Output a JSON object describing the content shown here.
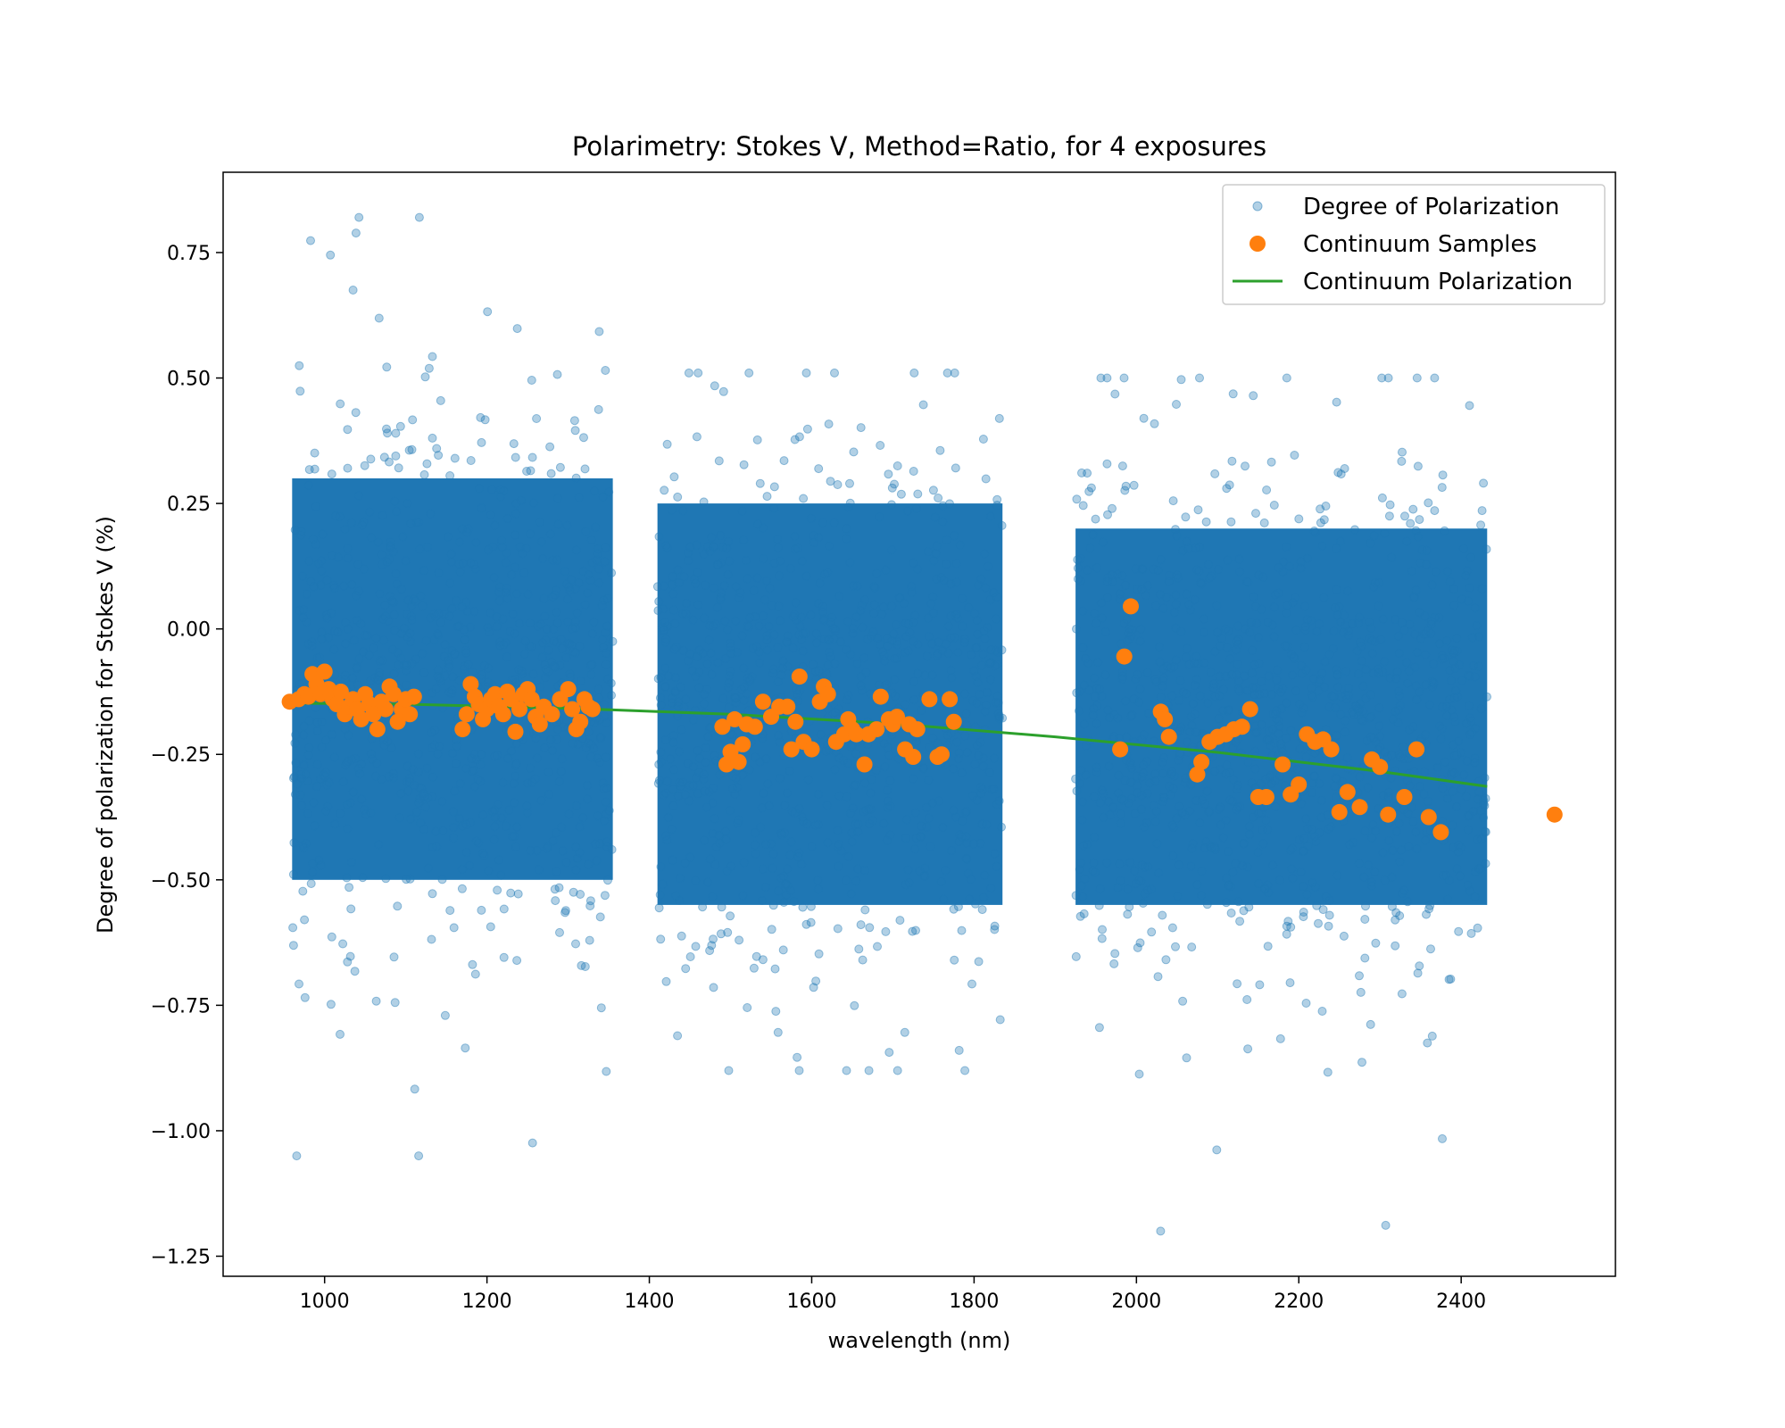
{
  "chart_data": {
    "type": "scatter",
    "title": "Polarimetry: Stokes V, Method=Ratio, for 4 exposures",
    "xlabel": "wavelength (nm)",
    "ylabel": "Degree of polarization for Stokes V (%)",
    "xlim": [
      875,
      2590
    ],
    "ylim": [
      -1.29,
      0.91
    ],
    "x_ticks": [
      1000,
      1200,
      1400,
      1600,
      1800,
      2000,
      2200,
      2400
    ],
    "y_ticks": [
      0.75,
      0.5,
      0.25,
      0.0,
      -0.25,
      -0.5,
      -0.75,
      -1.0,
      -1.25
    ],
    "y_tick_labels": [
      "0.75",
      "0.50",
      "0.25",
      "0.00",
      "−0.25",
      "−0.50",
      "−0.75",
      "−1.00",
      "−1.25"
    ],
    "legend_position": "top-right",
    "grid": false,
    "series": [
      {
        "name": "Degree of Polarization",
        "kind": "scatter-band",
        "color": "#1f77b4",
        "bands": [
          {
            "x_range": [
              960,
              1355
            ],
            "core": [
              -0.5,
              0.3
            ],
            "extent": [
              -1.05,
              0.82
            ]
          },
          {
            "x_range": [
              1410,
              1835
            ],
            "core": [
              -0.55,
              0.25
            ],
            "extent": [
              -0.88,
              0.51
            ]
          },
          {
            "x_range": [
              1925,
              2432
            ],
            "core": [
              -0.55,
              0.2
            ],
            "extent": [
              -1.2,
              0.5
            ]
          }
        ]
      },
      {
        "name": "Continuum Samples",
        "kind": "points",
        "color": "#ff7f0e",
        "points": [
          [
            957,
            -0.145
          ],
          [
            968,
            -0.14
          ],
          [
            975,
            -0.13
          ],
          [
            980,
            -0.135
          ],
          [
            985,
            -0.09
          ],
          [
            990,
            -0.11
          ],
          [
            995,
            -0.13
          ],
          [
            1000,
            -0.085
          ],
          [
            1005,
            -0.12
          ],
          [
            1010,
            -0.14
          ],
          [
            1015,
            -0.15
          ],
          [
            1020,
            -0.125
          ],
          [
            1025,
            -0.17
          ],
          [
            1030,
            -0.155
          ],
          [
            1035,
            -0.14
          ],
          [
            1040,
            -0.16
          ],
          [
            1045,
            -0.18
          ],
          [
            1050,
            -0.13
          ],
          [
            1055,
            -0.15
          ],
          [
            1060,
            -0.17
          ],
          [
            1065,
            -0.2
          ],
          [
            1070,
            -0.145
          ],
          [
            1075,
            -0.16
          ],
          [
            1080,
            -0.115
          ],
          [
            1085,
            -0.13
          ],
          [
            1090,
            -0.185
          ],
          [
            1095,
            -0.16
          ],
          [
            1100,
            -0.14
          ],
          [
            1105,
            -0.17
          ],
          [
            1110,
            -0.135
          ],
          [
            1170,
            -0.2
          ],
          [
            1175,
            -0.17
          ],
          [
            1180,
            -0.11
          ],
          [
            1185,
            -0.135
          ],
          [
            1190,
            -0.15
          ],
          [
            1195,
            -0.18
          ],
          [
            1200,
            -0.16
          ],
          [
            1205,
            -0.14
          ],
          [
            1210,
            -0.13
          ],
          [
            1215,
            -0.155
          ],
          [
            1220,
            -0.17
          ],
          [
            1225,
            -0.125
          ],
          [
            1230,
            -0.14
          ],
          [
            1235,
            -0.205
          ],
          [
            1240,
            -0.16
          ],
          [
            1245,
            -0.13
          ],
          [
            1250,
            -0.12
          ],
          [
            1255,
            -0.14
          ],
          [
            1260,
            -0.175
          ],
          [
            1265,
            -0.19
          ],
          [
            1270,
            -0.155
          ],
          [
            1280,
            -0.17
          ],
          [
            1290,
            -0.14
          ],
          [
            1300,
            -0.12
          ],
          [
            1305,
            -0.16
          ],
          [
            1310,
            -0.2
          ],
          [
            1315,
            -0.185
          ],
          [
            1320,
            -0.14
          ],
          [
            1325,
            -0.155
          ],
          [
            1330,
            -0.16
          ],
          [
            1490,
            -0.195
          ],
          [
            1495,
            -0.27
          ],
          [
            1500,
            -0.245
          ],
          [
            1505,
            -0.18
          ],
          [
            1510,
            -0.265
          ],
          [
            1515,
            -0.23
          ],
          [
            1520,
            -0.19
          ],
          [
            1530,
            -0.195
          ],
          [
            1540,
            -0.145
          ],
          [
            1550,
            -0.175
          ],
          [
            1560,
            -0.155
          ],
          [
            1570,
            -0.155
          ],
          [
            1575,
            -0.24
          ],
          [
            1580,
            -0.185
          ],
          [
            1585,
            -0.095
          ],
          [
            1590,
            -0.225
          ],
          [
            1600,
            -0.24
          ],
          [
            1610,
            -0.145
          ],
          [
            1615,
            -0.115
          ],
          [
            1620,
            -0.13
          ],
          [
            1630,
            -0.225
          ],
          [
            1640,
            -0.21
          ],
          [
            1645,
            -0.18
          ],
          [
            1650,
            -0.2
          ],
          [
            1655,
            -0.21
          ],
          [
            1665,
            -0.27
          ],
          [
            1670,
            -0.21
          ],
          [
            1680,
            -0.2
          ],
          [
            1685,
            -0.135
          ],
          [
            1695,
            -0.18
          ],
          [
            1700,
            -0.19
          ],
          [
            1705,
            -0.175
          ],
          [
            1715,
            -0.24
          ],
          [
            1720,
            -0.19
          ],
          [
            1725,
            -0.255
          ],
          [
            1730,
            -0.2
          ],
          [
            1745,
            -0.14
          ],
          [
            1755,
            -0.255
          ],
          [
            1760,
            -0.25
          ],
          [
            1770,
            -0.14
          ],
          [
            1775,
            -0.185
          ],
          [
            1980,
            -0.24
          ],
          [
            1985,
            -0.055
          ],
          [
            1993,
            0.045
          ],
          [
            2030,
            -0.165
          ],
          [
            2035,
            -0.18
          ],
          [
            2040,
            -0.215
          ],
          [
            2075,
            -0.29
          ],
          [
            2080,
            -0.265
          ],
          [
            2090,
            -0.225
          ],
          [
            2100,
            -0.215
          ],
          [
            2110,
            -0.21
          ],
          [
            2120,
            -0.2
          ],
          [
            2130,
            -0.195
          ],
          [
            2140,
            -0.16
          ],
          [
            2150,
            -0.335
          ],
          [
            2160,
            -0.335
          ],
          [
            2180,
            -0.27
          ],
          [
            2190,
            -0.33
          ],
          [
            2200,
            -0.31
          ],
          [
            2210,
            -0.21
          ],
          [
            2220,
            -0.225
          ],
          [
            2230,
            -0.22
          ],
          [
            2240,
            -0.24
          ],
          [
            2250,
            -0.365
          ],
          [
            2260,
            -0.325
          ],
          [
            2275,
            -0.355
          ],
          [
            2290,
            -0.26
          ],
          [
            2300,
            -0.275
          ],
          [
            2310,
            -0.37
          ],
          [
            2330,
            -0.335
          ],
          [
            2345,
            -0.24
          ],
          [
            2360,
            -0.375
          ],
          [
            2375,
            -0.405
          ],
          [
            2515,
            -0.37
          ]
        ]
      },
      {
        "name": "Continuum Polarization",
        "kind": "line",
        "color": "#2ca02c",
        "x": [
          960,
          1100,
          1300,
          1500,
          1700,
          1900,
          2100,
          2300,
          2432
        ],
        "y": [
          -0.148,
          -0.15,
          -0.158,
          -0.17,
          -0.189,
          -0.215,
          -0.246,
          -0.284,
          -0.314
        ]
      }
    ]
  }
}
